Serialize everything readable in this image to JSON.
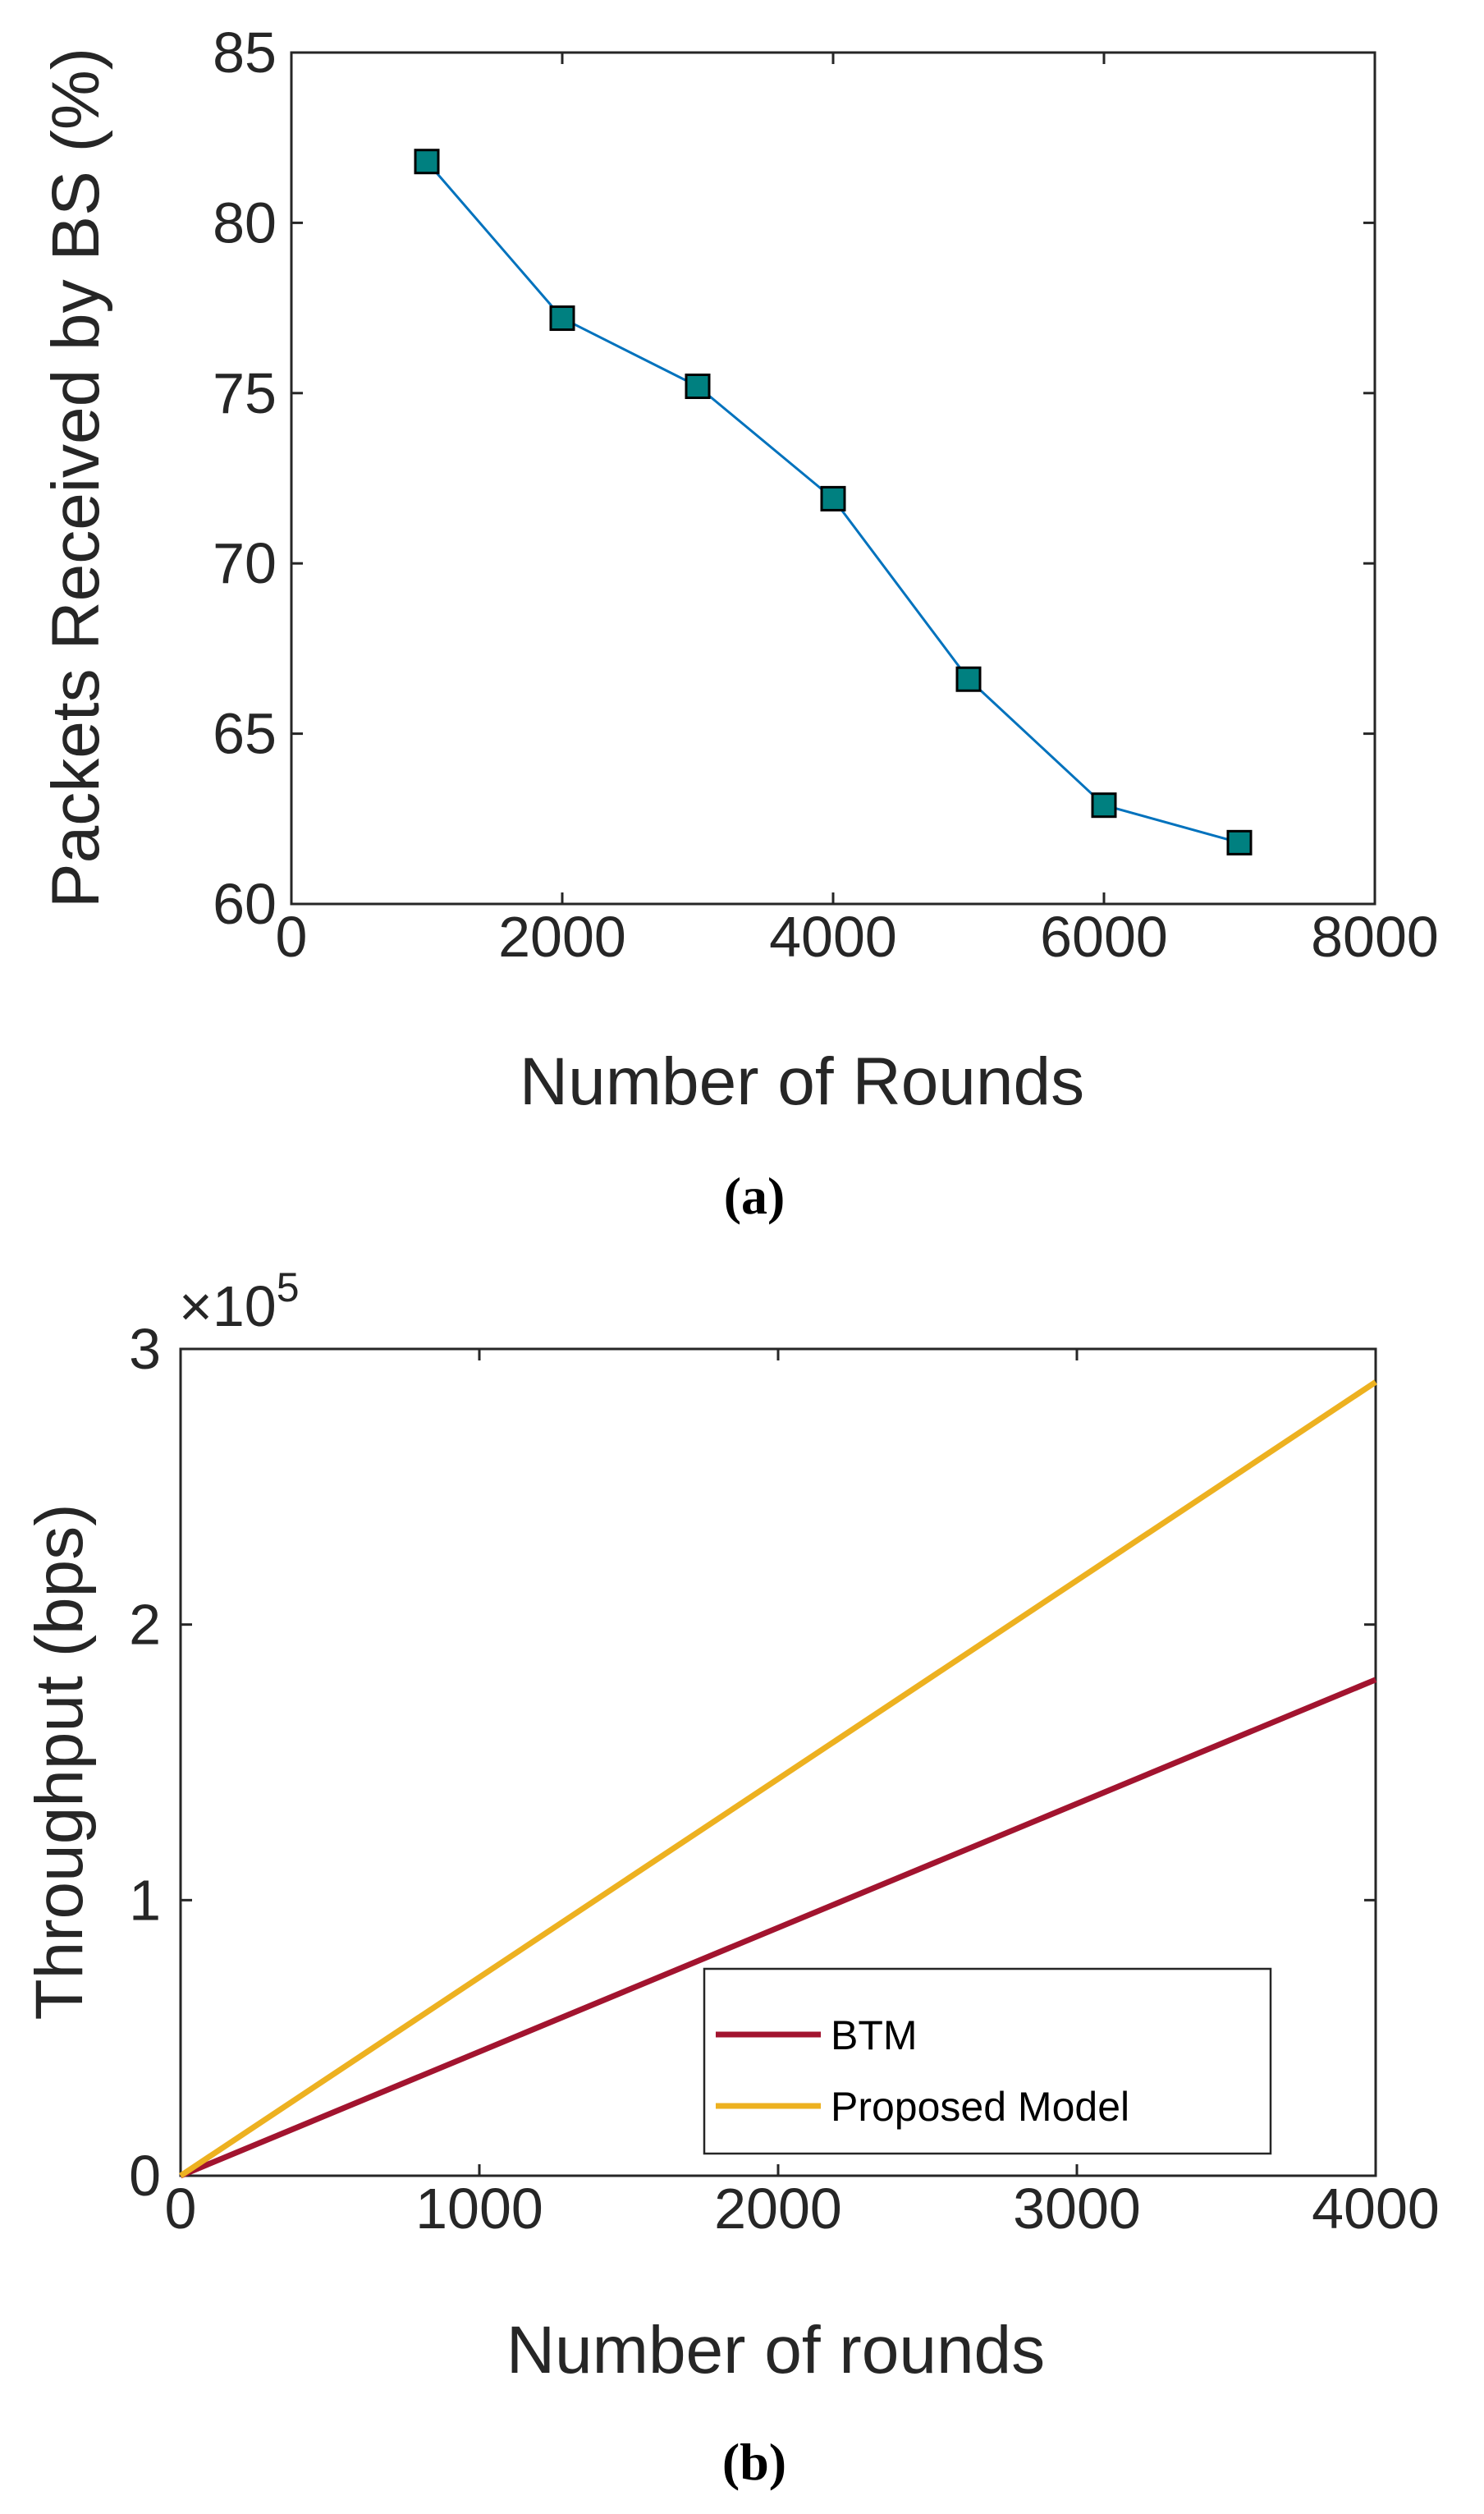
{
  "chart_data": [
    {
      "type": "line",
      "panel_label": "(a)",
      "title": "",
      "xlabel": "Number of Rounds",
      "ylabel": "Packets Received by BS (%)",
      "xlim": [
        0,
        8000
      ],
      "ylim": [
        60,
        85
      ],
      "xticks": [
        0,
        2000,
        4000,
        6000,
        8000
      ],
      "yticks": [
        60,
        65,
        70,
        75,
        80,
        85
      ],
      "grid": false,
      "series": [
        {
          "name": "Packets Received",
          "color": "#0072BD",
          "marker": "square",
          "marker_color": "#008080",
          "x": [
            1000,
            2000,
            3000,
            4000,
            5000,
            6000,
            7000
          ],
          "y": [
            81.8,
            77.2,
            75.2,
            71.9,
            66.6,
            62.9,
            61.8
          ]
        }
      ]
    },
    {
      "type": "line",
      "panel_label": "(b)",
      "title": "",
      "xlabel": "Number of rounds",
      "ylabel": "Throughput (bps)",
      "y_multiplier": "×10",
      "y_multiplier_exp": "5",
      "xlim": [
        0,
        4000
      ],
      "ylim": [
        0,
        3
      ],
      "xticks": [
        0,
        1000,
        2000,
        3000,
        4000
      ],
      "yticks": [
        0,
        1,
        2,
        3
      ],
      "grid": false,
      "legend_position": "lower-right",
      "series": [
        {
          "name": "BTM",
          "color": "#A2142F",
          "x": [
            0,
            4000
          ],
          "y": [
            0,
            1.8
          ]
        },
        {
          "name": "Proposed Model",
          "color": "#EDB120",
          "x": [
            0,
            4000
          ],
          "y": [
            0,
            2.88
          ]
        }
      ]
    }
  ]
}
